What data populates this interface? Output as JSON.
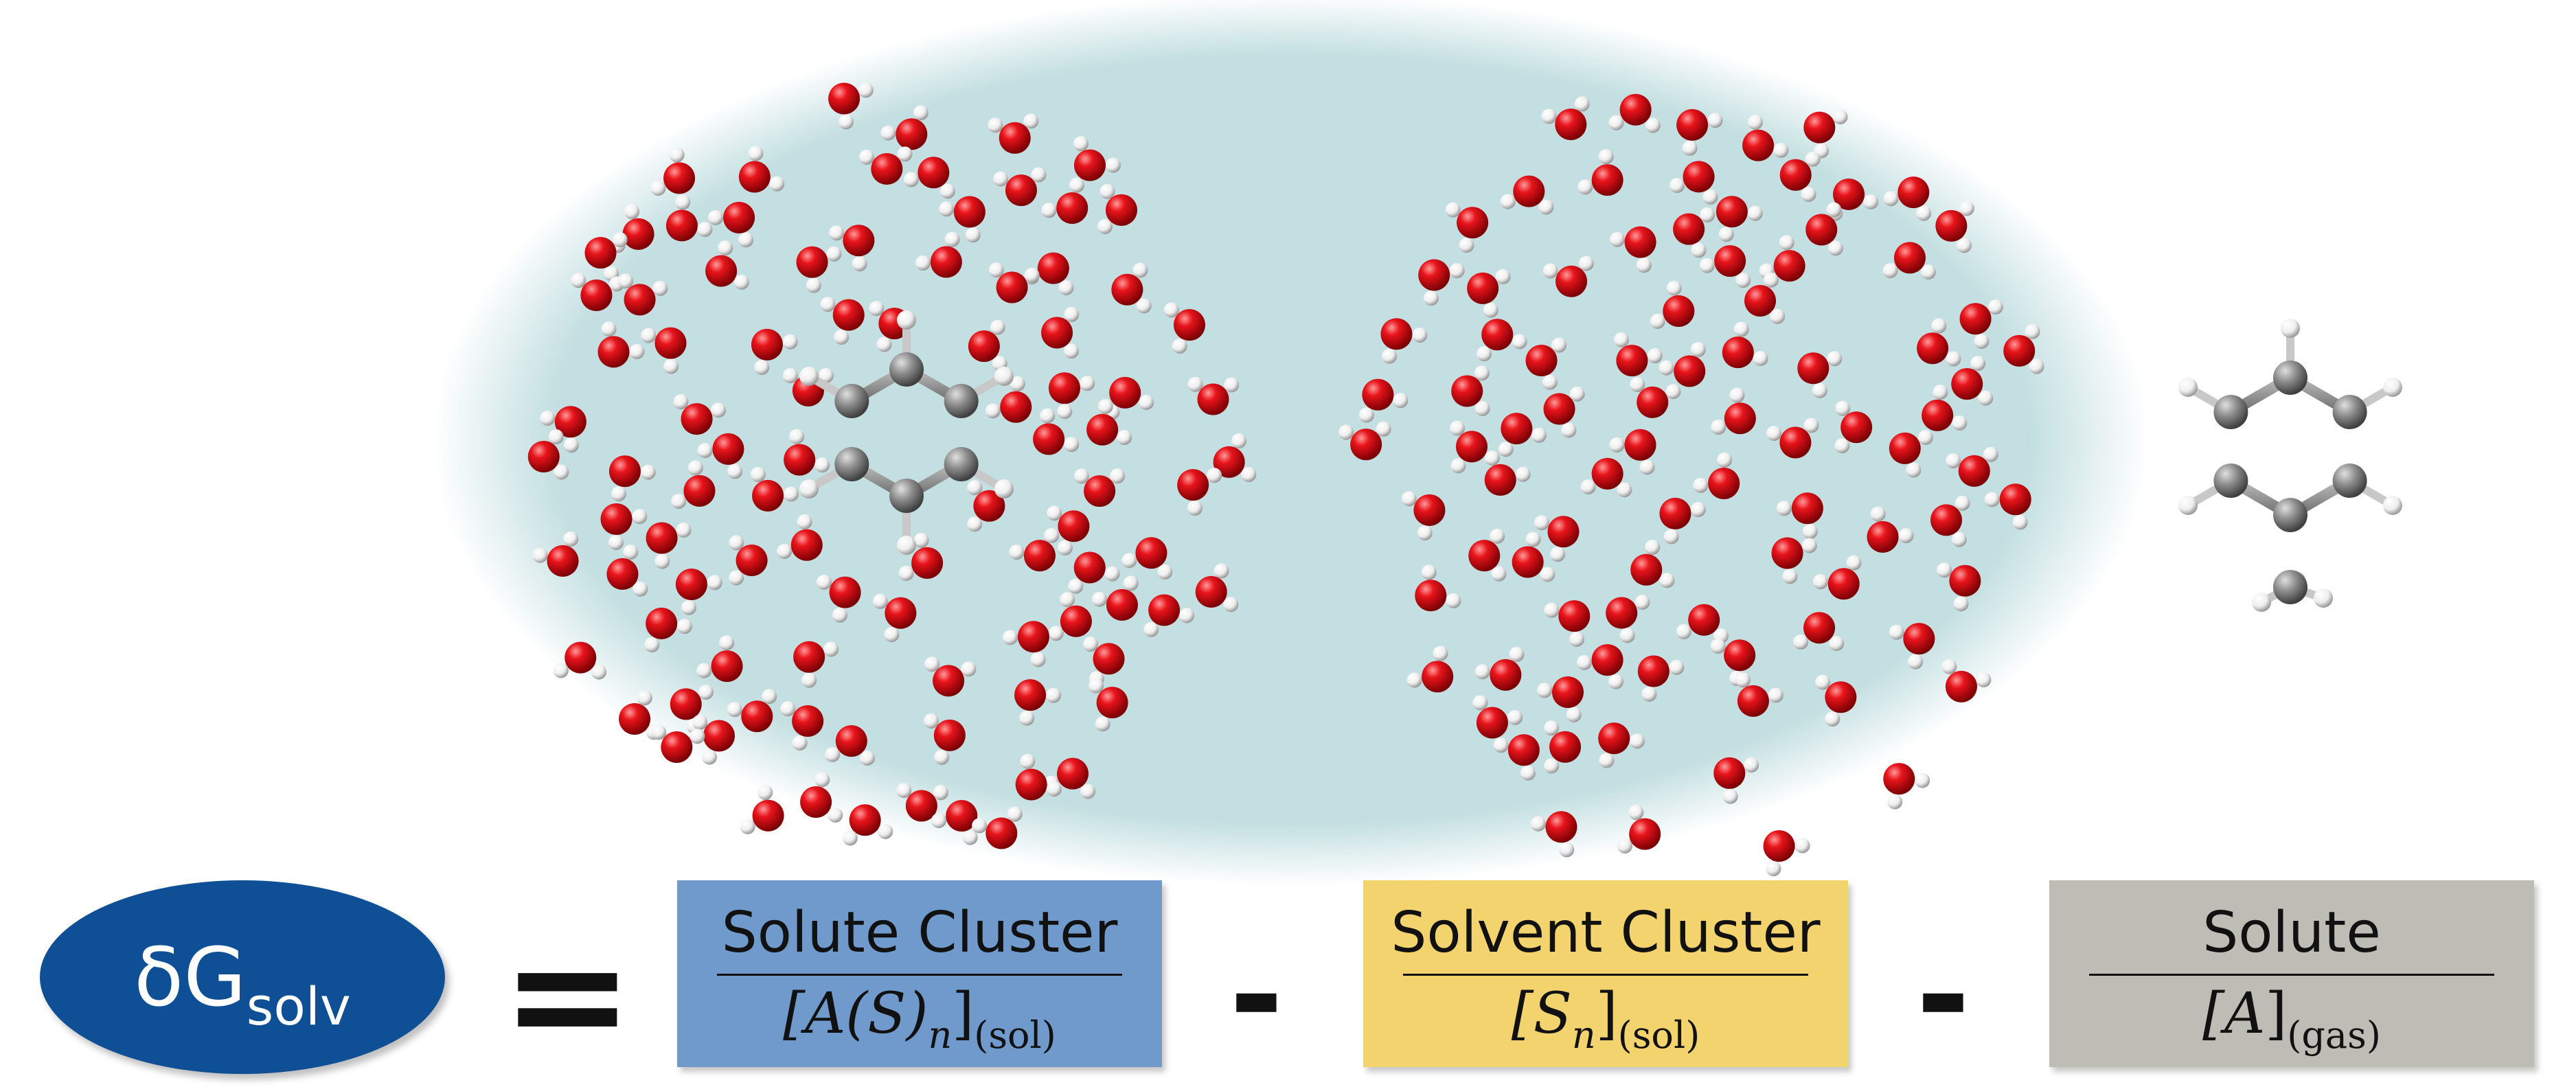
{
  "lhs": {
    "symbol": "δG",
    "subscript": "solv"
  },
  "operators": {
    "equals": "=",
    "minus1": "-",
    "minus2": "-"
  },
  "terms": [
    {
      "title": "Solute Cluster",
      "math": "[A(S)",
      "math_sub": "n",
      "math_close": "]",
      "phase": "(sol)"
    },
    {
      "title": "Solvent Cluster",
      "math": "[S",
      "math_sub": "n",
      "math_close": "]",
      "phase": "(sol)"
    },
    {
      "title": "Solute",
      "math": "[A",
      "math_sub": "",
      "math_close": "]",
      "phase": "(gas)"
    }
  ],
  "colors": {
    "background_glow": "#c3dfe1",
    "lhs_ellipse": "#0e4f96",
    "solute_cluster_box": "#6f9acb",
    "solvent_cluster_box": "#f2d36e",
    "solute_box": "#bdbdb6",
    "oxygen": "#e8141b",
    "hydrogen": "#f4f4f4",
    "carbon": "#8f8f8f"
  },
  "icons": [
    "toluene-molecule-icon",
    "water-molecule-icon"
  ]
}
